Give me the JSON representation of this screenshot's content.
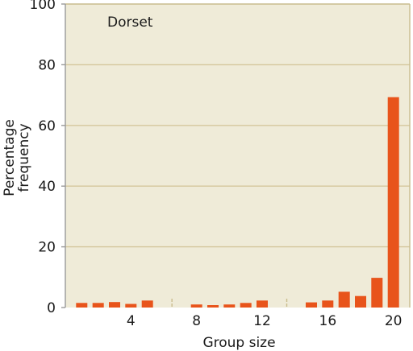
{
  "chart_data": {
    "type": "bar",
    "title": "Dorset",
    "xlabel": "Group size",
    "ylabel_lines": [
      "Percentage",
      "frequency"
    ],
    "xlim": [
      0,
      21
    ],
    "ylim": [
      0,
      100
    ],
    "xticks": [
      4,
      8,
      12,
      16,
      20
    ],
    "yticks": [
      0,
      20,
      40,
      60,
      80,
      100
    ],
    "grid": true,
    "x": [
      1,
      2,
      3,
      4,
      5,
      8,
      9,
      10,
      11,
      12,
      15,
      16,
      17,
      18,
      19,
      20
    ],
    "values": [
      1.5,
      1.5,
      1.8,
      1.2,
      2.3,
      1.0,
      0.8,
      1.0,
      1.5,
      2.3,
      1.7,
      2.3,
      5.2,
      3.8,
      9.8,
      69.3
    ],
    "colors": {
      "bar": "#e8541b",
      "plot_background": "#efebd8",
      "gridline": "#d4c79c",
      "frame": "#c9bc8d",
      "axis": "#9a9a9a"
    }
  }
}
